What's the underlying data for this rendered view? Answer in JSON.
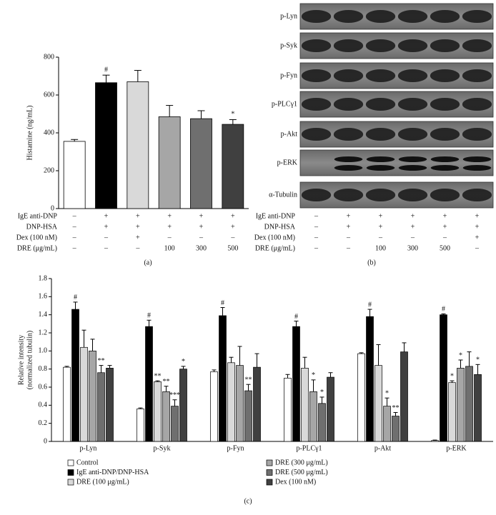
{
  "chart_data": [
    {
      "type": "bar",
      "panel": "(a)",
      "ylabel": "Histamine (ng/mL)",
      "ylim": [
        0,
        800
      ],
      "yticks": [
        0,
        200,
        400,
        600,
        800
      ],
      "values": [
        355,
        665,
        670,
        485,
        475,
        445
      ],
      "errors": [
        10,
        40,
        60,
        60,
        42,
        25
      ],
      "colors": [
        "#ffffff",
        "#000000",
        "#d9d9d9",
        "#a6a6a6",
        "#6f6f6f",
        "#404040"
      ],
      "annotations": [
        null,
        "#",
        null,
        null,
        null,
        "*"
      ],
      "conditions": [
        {
          "name": "IgE anti-DNP",
          "values": [
            "–",
            "+",
            "+",
            "+",
            "+",
            "+"
          ]
        },
        {
          "name": "DNP-HSA",
          "values": [
            "–",
            "+",
            "+",
            "+",
            "+",
            "+"
          ]
        },
        {
          "name": "Dex (100 nM)",
          "values": [
            "–",
            "–",
            "+",
            "–",
            "–",
            "–"
          ]
        },
        {
          "name": "DRE (μg/mL)",
          "values": [
            "–",
            "–",
            "–",
            "100",
            "300",
            "500"
          ]
        }
      ]
    },
    {
      "type": "grouped_bar",
      "panel": "(c)",
      "ylabel": [
        "Relative intensity",
        "(normalized tubulin)"
      ],
      "ylim": [
        0,
        1.8
      ],
      "yticks": [
        0,
        0.2,
        0.4,
        0.6,
        0.8,
        {
          "value": 1,
          "label": "1.0"
        },
        1.2,
        1.4,
        1.6,
        1.8
      ],
      "categories": [
        "p-Lyn",
        "p-Syk",
        "p-Fyn",
        "p-PLCγ1",
        "p-Akt",
        "p-ERK"
      ],
      "series": [
        {
          "name": "Control",
          "color": "#ffffff",
          "values": [
            0.82,
            0.36,
            0.77,
            0.7,
            0.97,
            0.01
          ],
          "errors": [
            0.01,
            0.01,
            0.02,
            0.04,
            0.01,
            0.005
          ],
          "annotations": [
            null,
            null,
            null,
            null,
            null,
            null
          ]
        },
        {
          "name": "IgE anti-DNP/DNP-HSA",
          "color": "#000000",
          "values": [
            1.46,
            1.27,
            1.39,
            1.27,
            1.38,
            1.4
          ],
          "errors": [
            0.08,
            0.07,
            0.09,
            0.06,
            0.08,
            0.01
          ],
          "annotations": [
            "#",
            "#",
            "#",
            "#",
            "#",
            "#"
          ]
        },
        {
          "name": "DRE (100 μg/mL)",
          "color": "#d9d9d9",
          "values": [
            1.04,
            0.66,
            0.87,
            0.81,
            0.84,
            0.65
          ],
          "errors": [
            0.19,
            0.01,
            0.06,
            0.12,
            0.23,
            0.02
          ],
          "annotations": [
            null,
            "**",
            null,
            null,
            null,
            "*"
          ]
        },
        {
          "name": "DRE (300 μg/mL)",
          "color": "#a6a6a6",
          "values": [
            1.0,
            0.55,
            0.84,
            0.55,
            0.39,
            0.81
          ],
          "errors": [
            0.13,
            0.06,
            0.21,
            0.13,
            0.09,
            0.09
          ],
          "annotations": [
            null,
            "**",
            null,
            "*",
            "*",
            "*"
          ]
        },
        {
          "name": "DRE (500 μg/mL)",
          "color": "#6f6f6f",
          "values": [
            0.76,
            0.39,
            0.56,
            0.42,
            0.28,
            0.83
          ],
          "errors": [
            0.08,
            0.07,
            0.07,
            0.07,
            0.04,
            0.16
          ],
          "annotations": [
            "**",
            "***",
            "**",
            "*",
            "**",
            null
          ]
        },
        {
          "name": "Dex (100 nM)",
          "color": "#404040",
          "values": [
            0.81,
            0.8,
            0.82,
            0.71,
            0.99,
            0.74
          ],
          "errors": [
            0.03,
            0.03,
            0.15,
            0.05,
            0.1,
            0.11
          ],
          "annotations": [
            null,
            "*",
            null,
            null,
            null,
            "*"
          ]
        }
      ]
    }
  ],
  "blot": {
    "panel": "(b)",
    "proteins": [
      "p-Lyn",
      "p-Syk",
      "p-Fyn",
      "p-PLCγ1",
      "p-Akt",
      "p-ERK",
      "α-Tubulin"
    ],
    "conditions": [
      {
        "name": "IgE anti-DNP",
        "values": [
          "–",
          "+",
          "+",
          "+",
          "+",
          "+"
        ]
      },
      {
        "name": "DNP-HSA",
        "values": [
          "–",
          "+",
          "+",
          "+",
          "+",
          "+"
        ]
      },
      {
        "name": "Dex (100 nM)",
        "values": [
          "–",
          "–",
          "–",
          "–",
          "–",
          "+"
        ]
      },
      {
        "name": "DRE (μg/mL)",
        "values": [
          "–",
          "–",
          "100",
          "300",
          "500",
          "–"
        ]
      }
    ]
  }
}
